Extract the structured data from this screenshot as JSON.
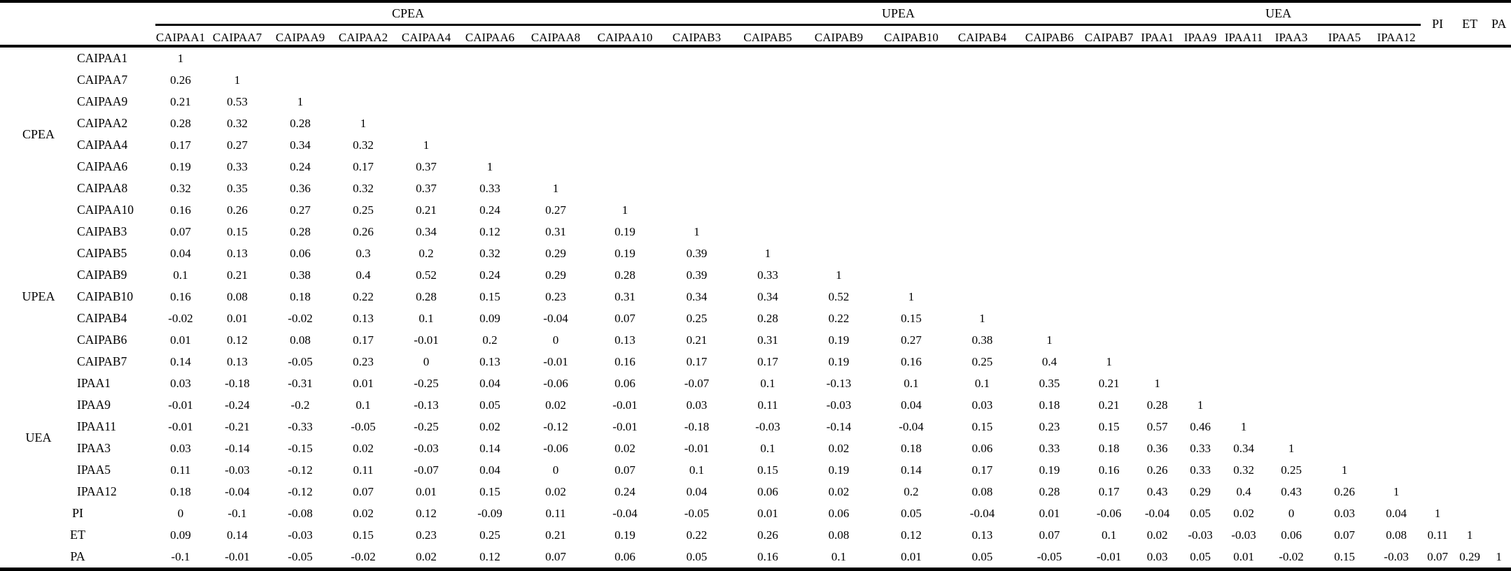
{
  "table": {
    "column_groups": [
      {
        "label": "CPEA",
        "columns": [
          "CAIPAA1",
          "CAIPAA7",
          "CAIPAA9",
          "CAIPAA2",
          "CAIPAA4",
          "CAIPAA6",
          "CAIPAA8",
          "CAIPAA10"
        ]
      },
      {
        "label": "UPEA",
        "columns": [
          "CAIPAB3",
          "CAIPAB5",
          "CAIPAB9",
          "CAIPAB10",
          "CAIPAB4",
          "CAIPAB6",
          "CAIPAB7"
        ]
      },
      {
        "label": "UEA",
        "columns": [
          "IPAA1",
          "IPAA9",
          "IPAA11",
          "IPAA3",
          "IPAA5",
          "IPAA12"
        ]
      }
    ],
    "standalone_columns": [
      "PI",
      "ET",
      "PA"
    ],
    "row_groups": [
      {
        "label": "CPEA",
        "rows": [
          {
            "label": "CAIPAA1",
            "values": [
              "1"
            ]
          },
          {
            "label": "CAIPAA7",
            "values": [
              "0.26",
              "1"
            ]
          },
          {
            "label": "CAIPAA9",
            "values": [
              "0.21",
              "0.53",
              "1"
            ]
          },
          {
            "label": "CAIPAA2",
            "values": [
              "0.28",
              "0.32",
              "0.28",
              "1"
            ]
          },
          {
            "label": "CAIPAA4",
            "values": [
              "0.17",
              "0.27",
              "0.34",
              "0.32",
              "1"
            ]
          },
          {
            "label": "CAIPAA6",
            "values": [
              "0.19",
              "0.33",
              "0.24",
              "0.17",
              "0.37",
              "1"
            ]
          },
          {
            "label": "CAIPAA8",
            "values": [
              "0.32",
              "0.35",
              "0.36",
              "0.32",
              "0.37",
              "0.33",
              "1"
            ]
          },
          {
            "label": "CAIPAA10",
            "values": [
              "0.16",
              "0.26",
              "0.27",
              "0.25",
              "0.21",
              "0.24",
              "0.27",
              "1"
            ]
          }
        ]
      },
      {
        "label": "UPEA",
        "rows": [
          {
            "label": "CAIPAB3",
            "values": [
              "0.07",
              "0.15",
              "0.28",
              "0.26",
              "0.34",
              "0.12",
              "0.31",
              "0.19",
              "1"
            ]
          },
          {
            "label": "CAIPAB5",
            "values": [
              "0.04",
              "0.13",
              "0.06",
              "0.3",
              "0.2",
              "0.32",
              "0.29",
              "0.19",
              "0.39",
              "1"
            ]
          },
          {
            "label": "CAIPAB9",
            "values": [
              "0.1",
              "0.21",
              "0.38",
              "0.4",
              "0.52",
              "0.24",
              "0.29",
              "0.28",
              "0.39",
              "0.33",
              "1"
            ]
          },
          {
            "label": "CAIPAB10",
            "values": [
              "0.16",
              "0.08",
              "0.18",
              "0.22",
              "0.28",
              "0.15",
              "0.23",
              "0.31",
              "0.34",
              "0.34",
              "0.52",
              "1"
            ]
          },
          {
            "label": "CAIPAB4",
            "values": [
              "-0.02",
              "0.01",
              "-0.02",
              "0.13",
              "0.1",
              "0.09",
              "-0.04",
              "0.07",
              "0.25",
              "0.28",
              "0.22",
              "0.15",
              "1"
            ]
          },
          {
            "label": "CAIPAB6",
            "values": [
              "0.01",
              "0.12",
              "0.08",
              "0.17",
              "-0.01",
              "0.2",
              "0",
              "0.13",
              "0.21",
              "0.31",
              "0.19",
              "0.27",
              "0.38",
              "1"
            ]
          },
          {
            "label": "CAIPAB7",
            "values": [
              "0.14",
              "0.13",
              "-0.05",
              "0.23",
              "0",
              "0.13",
              "-0.01",
              "0.16",
              "0.17",
              "0.17",
              "0.19",
              "0.16",
              "0.25",
              "0.4",
              "1"
            ]
          }
        ]
      },
      {
        "label": "UEA",
        "rows": [
          {
            "label": "IPAA1",
            "values": [
              "0.03",
              "-0.18",
              "-0.31",
              "0.01",
              "-0.25",
              "0.04",
              "-0.06",
              "0.06",
              "-0.07",
              "0.1",
              "-0.13",
              "0.1",
              "0.1",
              "0.35",
              "0.21",
              "1"
            ]
          },
          {
            "label": "IPAA9",
            "values": [
              "-0.01",
              "-0.24",
              "-0.2",
              "0.1",
              "-0.13",
              "0.05",
              "0.02",
              "-0.01",
              "0.03",
              "0.11",
              "-0.03",
              "0.04",
              "0.03",
              "0.18",
              "0.21",
              "0.28",
              "1"
            ]
          },
          {
            "label": "IPAA11",
            "values": [
              "-0.01",
              "-0.21",
              "-0.33",
              "-0.05",
              "-0.25",
              "0.02",
              "-0.12",
              "-0.01",
              "-0.18",
              "-0.03",
              "-0.14",
              "-0.04",
              "0.15",
              "0.23",
              "0.15",
              "0.57",
              "0.46",
              "1"
            ]
          },
          {
            "label": "IPAA3",
            "values": [
              "0.03",
              "-0.14",
              "-0.15",
              "0.02",
              "-0.03",
              "0.14",
              "-0.06",
              "0.02",
              "-0.01",
              "0.1",
              "0.02",
              "0.18",
              "0.06",
              "0.33",
              "0.18",
              "0.36",
              "0.33",
              "0.34",
              "1"
            ]
          },
          {
            "label": "IPAA5",
            "values": [
              "0.11",
              "-0.03",
              "-0.12",
              "0.11",
              "-0.07",
              "0.04",
              "0",
              "0.07",
              "0.1",
              "0.15",
              "0.19",
              "0.14",
              "0.17",
              "0.19",
              "0.16",
              "0.26",
              "0.33",
              "0.32",
              "0.25",
              "1"
            ]
          },
          {
            "label": "IPAA12",
            "values": [
              "0.18",
              "-0.04",
              "-0.12",
              "0.07",
              "0.01",
              "0.15",
              "0.02",
              "0.24",
              "0.04",
              "0.06",
              "0.02",
              "0.2",
              "0.08",
              "0.28",
              "0.17",
              "0.43",
              "0.29",
              "0.4",
              "0.43",
              "0.26",
              "1"
            ]
          }
        ]
      }
    ],
    "standalone_rows": [
      {
        "label": "PI",
        "values": [
          "0",
          "-0.1",
          "-0.08",
          "0.02",
          "0.12",
          "-0.09",
          "0.11",
          "-0.04",
          "-0.05",
          "0.01",
          "0.06",
          "0.05",
          "-0.04",
          "0.01",
          "-0.06",
          "-0.04",
          "0.05",
          "0.02",
          "0",
          "0.03",
          "0.04",
          "1"
        ]
      },
      {
        "label": "ET",
        "values": [
          "0.09",
          "0.14",
          "-0.03",
          "0.15",
          "0.23",
          "0.25",
          "0.21",
          "0.19",
          "0.22",
          "0.26",
          "0.08",
          "0.12",
          "0.13",
          "0.07",
          "0.1",
          "0.02",
          "-0.03",
          "-0.03",
          "0.06",
          "0.07",
          "0.08",
          "0.11",
          "1"
        ]
      },
      {
        "label": "PA",
        "values": [
          "-0.1",
          "-0.01",
          "-0.05",
          "-0.02",
          "0.02",
          "0.12",
          "0.07",
          "0.06",
          "0.05",
          "0.16",
          "0.1",
          "0.01",
          "0.05",
          "-0.05",
          "-0.01",
          "0.03",
          "0.05",
          "0.01",
          "-0.02",
          "0.15",
          "-0.03",
          "0.07",
          "0.29",
          "1"
        ]
      }
    ],
    "colors": {
      "text": "#000000",
      "background": "#ffffff",
      "rule": "#000000"
    }
  }
}
